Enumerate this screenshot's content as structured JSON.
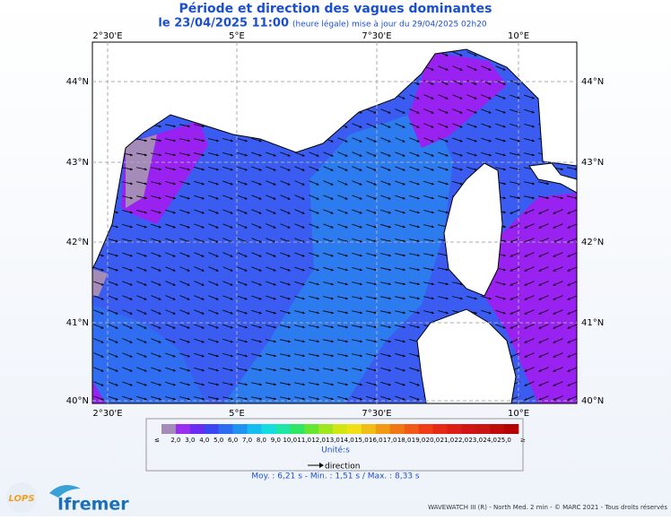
{
  "header": {
    "title": "Période et direction des vagues dominantes",
    "date": "le 23/04/2025 11:00",
    "update": "(heure légale) mise à jour du 29/04/2025 02h20"
  },
  "axes": {
    "lon": [
      "2°30'E",
      "5°E",
      "7°30'E",
      "10°E"
    ],
    "lat": [
      "44°N",
      "43°N",
      "42°N",
      "41°N",
      "40°N"
    ]
  },
  "colorbar": {
    "labels": [
      "2,0",
      "3,0",
      "4,0",
      "5,0",
      "6,0",
      "7,0",
      "8,0",
      "9,0",
      "10,0",
      "11,0",
      "12,0",
      "13,0",
      "14,0",
      "15,0",
      "16,0",
      "17,0",
      "18,0",
      "19,0",
      "20,0",
      "21,0",
      "22,0",
      "23,0",
      "24,0",
      "25,0"
    ],
    "low": "≤",
    "high": "≥",
    "colors": [
      "#a58bb8",
      "#9a2ef0",
      "#6a2cf2",
      "#3c46f2",
      "#2c6cf0",
      "#1e94f0",
      "#14bcf0",
      "#14dce0",
      "#1ee6a8",
      "#2ee664",
      "#64e632",
      "#a0e61e",
      "#d2e614",
      "#f0e014",
      "#f0be14",
      "#f09a14",
      "#f07814",
      "#f05a14",
      "#f03c14",
      "#e62814",
      "#dc1e14",
      "#d21414",
      "#c81414",
      "#be0a0a",
      "#b40000"
    ],
    "unit": "Unité:s",
    "direction": "direction"
  },
  "stats": "Moy. : 6,21 s  -  Min. : 1,51 s / Max. : 8,33 s",
  "footer": {
    "credits": "WAVEWATCH III (R) - North Med. 2 min - © MARC 2021 - Tous droits réservés",
    "logo1": "LOPS",
    "logo2": "Ifremer"
  }
}
